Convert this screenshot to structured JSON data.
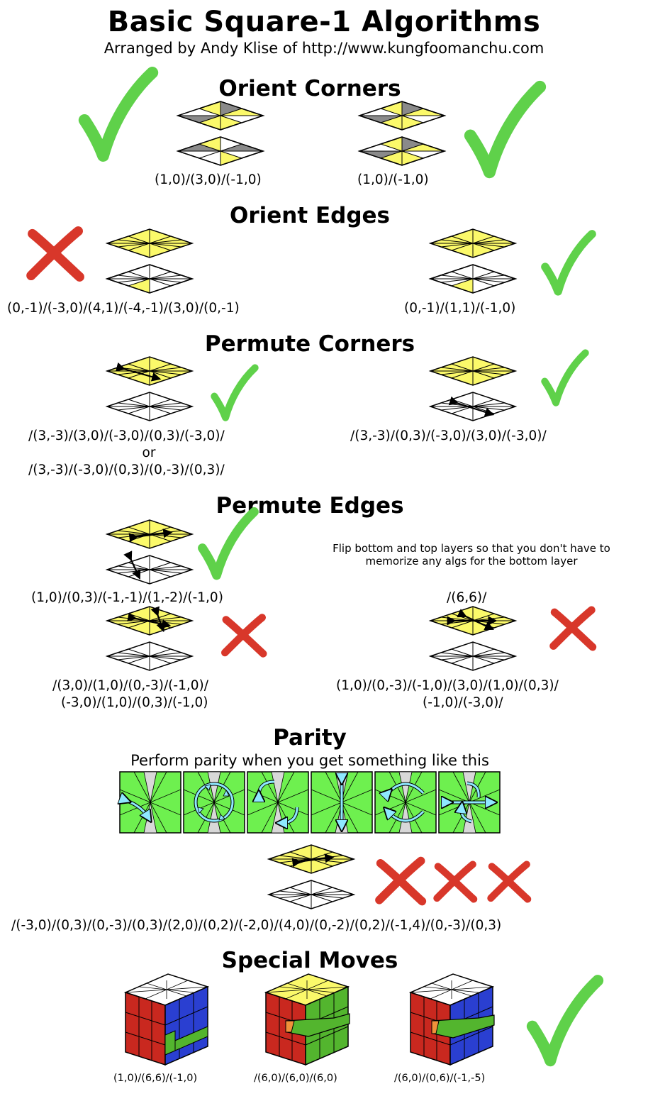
{
  "title": "Basic Square-1 Algorithms",
  "subtitle": "Arranged by Andy Klise of http://www.kungfoomanchu.com",
  "sections": {
    "orient_corners": {
      "heading": "Orient Corners",
      "alg_left": "(1,0)/(3,0)/(-1,0)",
      "alg_right": "(1,0)/(-1,0)"
    },
    "orient_edges": {
      "heading": "Orient Edges",
      "alg_left": "(0,-1)/(-3,0)/(4,1)/(-4,-1)/(3,0)/(0,-1)",
      "alg_right": "(0,-1)/(1,1)/(-1,0)"
    },
    "permute_corners": {
      "heading": "Permute Corners",
      "alg_left_1": "/(3,-3)/(3,0)/(-3,0)/(0,3)/(-3,0)/",
      "alg_left_or": "or",
      "alg_left_2": "/(3,-3)/(-3,0)/(0,3)/(0,-3)/(0,3)/",
      "alg_right": "/(3,-3)/(0,3)/(-3,0)/(3,0)/(-3,0)/"
    },
    "permute_edges": {
      "heading": "Permute Edges",
      "alg_top": "(1,0)/(0,3)/(-1,-1)/(1,-2)/(-1,0)",
      "note": "Flip bottom and top layers so that you don't have to memorize any algs for the bottom layer",
      "alg_flip": "/(6,6)/",
      "alg_bottom_left_1": "/(3,0)/(1,0)/(0,-3)/(-1,0)/",
      "alg_bottom_left_2": "(-3,0)/(1,0)/(0,3)/(-1,0)",
      "alg_bottom_right_1": "(1,0)/(0,-3)/(-1,0)/(3,0)/(1,0)/(0,3)/",
      "alg_bottom_right_2": "(-1,0)/(-3,0)/"
    },
    "parity": {
      "heading": "Parity",
      "caption": "Perform parity when you get something like this",
      "alg": "/(-3,0)/(0,3)/(0,-3)/(0,3)/(2,0)/(0,2)/(-2,0)/(4,0)/(0,-2)/(0,2)/(-1,4)/(0,-3)/(0,3)"
    },
    "special_moves": {
      "heading": "Special Moves",
      "alg_1": "(1,0)/(6,6)/(-1,0)",
      "alg_2": "/(6,0)/(6,0)/(6,0)",
      "alg_3": "/(6,0)/(0,6)/(-1,-5)"
    }
  },
  "colors": {
    "check": "#5fd14a",
    "cross": "#d8372a",
    "yellow": "#fbf96a",
    "gray": "#8a8a8a",
    "parity_green": "#6ef04f",
    "arrow_cyan": "#8ee8ff",
    "cube_red": "#c9281f",
    "cube_blue": "#2a3fd1",
    "cube_green": "#53b52e"
  }
}
